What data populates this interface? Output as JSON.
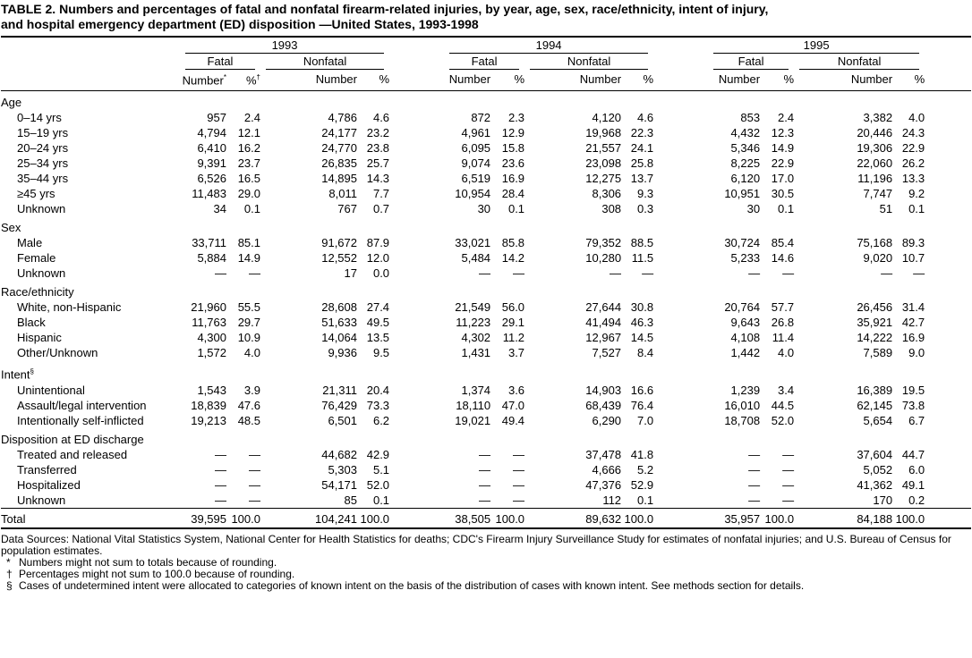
{
  "title": [
    "TABLE 2. Numbers and percentages of fatal and nonfatal firearm-related injuries, by year, age, sex, race/ethnicity, intent of injury,",
    "and hospital emergency department (ED) disposition —United States, 1993-1998"
  ],
  "header": {
    "years": [
      "1993",
      "1994",
      "1995"
    ],
    "groups": [
      "Fatal",
      "Nonfatal"
    ],
    "subheads": [
      "Number",
      "%"
    ],
    "first_year_notes": [
      "*",
      "†"
    ]
  },
  "sections": [
    {
      "label": "Age",
      "rows": [
        {
          "label": "0–14 yrs",
          "cells": [
            "957",
            "2.4",
            "4,786",
            "4.6",
            "872",
            "2.3",
            "4,120",
            "4.6",
            "853",
            "2.4",
            "3,382",
            "4.0"
          ]
        },
        {
          "label": "15–19 yrs",
          "cells": [
            "4,794",
            "12.1",
            "24,177",
            "23.2",
            "4,961",
            "12.9",
            "19,968",
            "22.3",
            "4,432",
            "12.3",
            "20,446",
            "24.3"
          ]
        },
        {
          "label": "20–24 yrs",
          "cells": [
            "6,410",
            "16.2",
            "24,770",
            "23.8",
            "6,095",
            "15.8",
            "21,557",
            "24.1",
            "5,346",
            "14.9",
            "19,306",
            "22.9"
          ]
        },
        {
          "label": "25–34 yrs",
          "cells": [
            "9,391",
            "23.7",
            "26,835",
            "25.7",
            "9,074",
            "23.6",
            "23,098",
            "25.8",
            "8,225",
            "22.9",
            "22,060",
            "26.2"
          ]
        },
        {
          "label": "35–44 yrs",
          "cells": [
            "6,526",
            "16.5",
            "14,895",
            "14.3",
            "6,519",
            "16.9",
            "12,275",
            "13.7",
            "6,120",
            "17.0",
            "11,196",
            "13.3"
          ]
        },
        {
          "label": "≥45 yrs",
          "cells": [
            "11,483",
            "29.0",
            "8,011",
            "7.7",
            "10,954",
            "28.4",
            "8,306",
            "9.3",
            "10,951",
            "30.5",
            "7,747",
            "9.2"
          ]
        },
        {
          "label": "Unknown",
          "cells": [
            "34",
            "0.1",
            "767",
            "0.7",
            "30",
            "0.1",
            "308",
            "0.3",
            "30",
            "0.1",
            "51",
            "0.1"
          ]
        }
      ]
    },
    {
      "label": "Sex",
      "rows": [
        {
          "label": "Male",
          "cells": [
            "33,711",
            "85.1",
            "91,672",
            "87.9",
            "33,021",
            "85.8",
            "79,352",
            "88.5",
            "30,724",
            "85.4",
            "75,168",
            "89.3"
          ]
        },
        {
          "label": "Female",
          "cells": [
            "5,884",
            "14.9",
            "12,552",
            "12.0",
            "5,484",
            "14.2",
            "10,280",
            "11.5",
            "5,233",
            "14.6",
            "9,020",
            "10.7"
          ]
        },
        {
          "label": "Unknown",
          "cells": [
            "—",
            "—",
            "17",
            "0.0",
            "—",
            "—",
            "—",
            "—",
            "—",
            "—",
            "—",
            "—"
          ]
        }
      ]
    },
    {
      "label": "Race/ethnicity",
      "rows": [
        {
          "label": "White, non-Hispanic",
          "cells": [
            "21,960",
            "55.5",
            "28,608",
            "27.4",
            "21,549",
            "56.0",
            "27,644",
            "30.8",
            "20,764",
            "57.7",
            "26,456",
            "31.4"
          ]
        },
        {
          "label": "Black",
          "cells": [
            "11,763",
            "29.7",
            "51,633",
            "49.5",
            "11,223",
            "29.1",
            "41,494",
            "46.3",
            "9,643",
            "26.8",
            "35,921",
            "42.7"
          ]
        },
        {
          "label": "Hispanic",
          "cells": [
            "4,300",
            "10.9",
            "14,064",
            "13.5",
            "4,302",
            "11.2",
            "12,967",
            "14.5",
            "4,108",
            "11.4",
            "14,222",
            "16.9"
          ]
        },
        {
          "label": "Other/Unknown",
          "cells": [
            "1,572",
            "4.0",
            "9,936",
            "9.5",
            "1,431",
            "3.7",
            "7,527",
            "8.4",
            "1,442",
            "4.0",
            "7,589",
            "9.0"
          ]
        }
      ]
    },
    {
      "label": "Intent",
      "note": "§",
      "rows": [
        {
          "label": "Unintentional",
          "cells": [
            "1,543",
            "3.9",
            "21,311",
            "20.4",
            "1,374",
            "3.6",
            "14,903",
            "16.6",
            "1,239",
            "3.4",
            "16,389",
            "19.5"
          ]
        },
        {
          "label": "Assault/legal intervention",
          "cells": [
            "18,839",
            "47.6",
            "76,429",
            "73.3",
            "18,110",
            "47.0",
            "68,439",
            "76.4",
            "16,010",
            "44.5",
            "62,145",
            "73.8"
          ]
        },
        {
          "label": "Intentionally self-inflicted",
          "cells": [
            "19,213",
            "48.5",
            "6,501",
            "6.2",
            "19,021",
            "49.4",
            "6,290",
            "7.0",
            "18,708",
            "52.0",
            "5,654",
            "6.7"
          ]
        }
      ]
    },
    {
      "label": "Disposition at ED discharge",
      "rows": [
        {
          "label": "Treated and released",
          "cells": [
            "—",
            "—",
            "44,682",
            "42.9",
            "—",
            "—",
            "37,478",
            "41.8",
            "—",
            "—",
            "37,604",
            "44.7"
          ]
        },
        {
          "label": "Transferred",
          "cells": [
            "—",
            "—",
            "5,303",
            "5.1",
            "—",
            "—",
            "4,666",
            "5.2",
            "—",
            "—",
            "5,052",
            "6.0"
          ]
        },
        {
          "label": "Hospitalized",
          "cells": [
            "—",
            "—",
            "54,171",
            "52.0",
            "—",
            "—",
            "47,376",
            "52.9",
            "—",
            "—",
            "41,362",
            "49.1"
          ]
        },
        {
          "label": "Unknown",
          "cells": [
            "—",
            "—",
            "85",
            "0.1",
            "—",
            "—",
            "112",
            "0.1",
            "—",
            "—",
            "170",
            "0.2"
          ]
        }
      ]
    }
  ],
  "total": {
    "label": "Total",
    "cells": [
      "39,595",
      "100.0",
      "104,241",
      "100.0",
      "38,505",
      "100.0",
      "89,632",
      "100.0",
      "35,957",
      "100.0",
      "84,188",
      "100.0"
    ]
  },
  "footnotes": {
    "source": "Data Sources: National Vital Statistics System, National Center for Health Statistics for deaths; CDC's Firearm Injury Surveillance Study for estimates of nonfatal injuries; and U.S. Bureau of Census for population estimates.",
    "notes": [
      {
        "symbol": "*",
        "text": "Numbers might not sum to totals because of rounding."
      },
      {
        "symbol": "†",
        "text": "Percentages might not sum to 100.0 because of rounding."
      },
      {
        "symbol": "§",
        "text": "Cases of undetermined intent were allocated to categories of known intent on the basis of the distribution of cases with known intent. See methods section for details."
      }
    ]
  }
}
